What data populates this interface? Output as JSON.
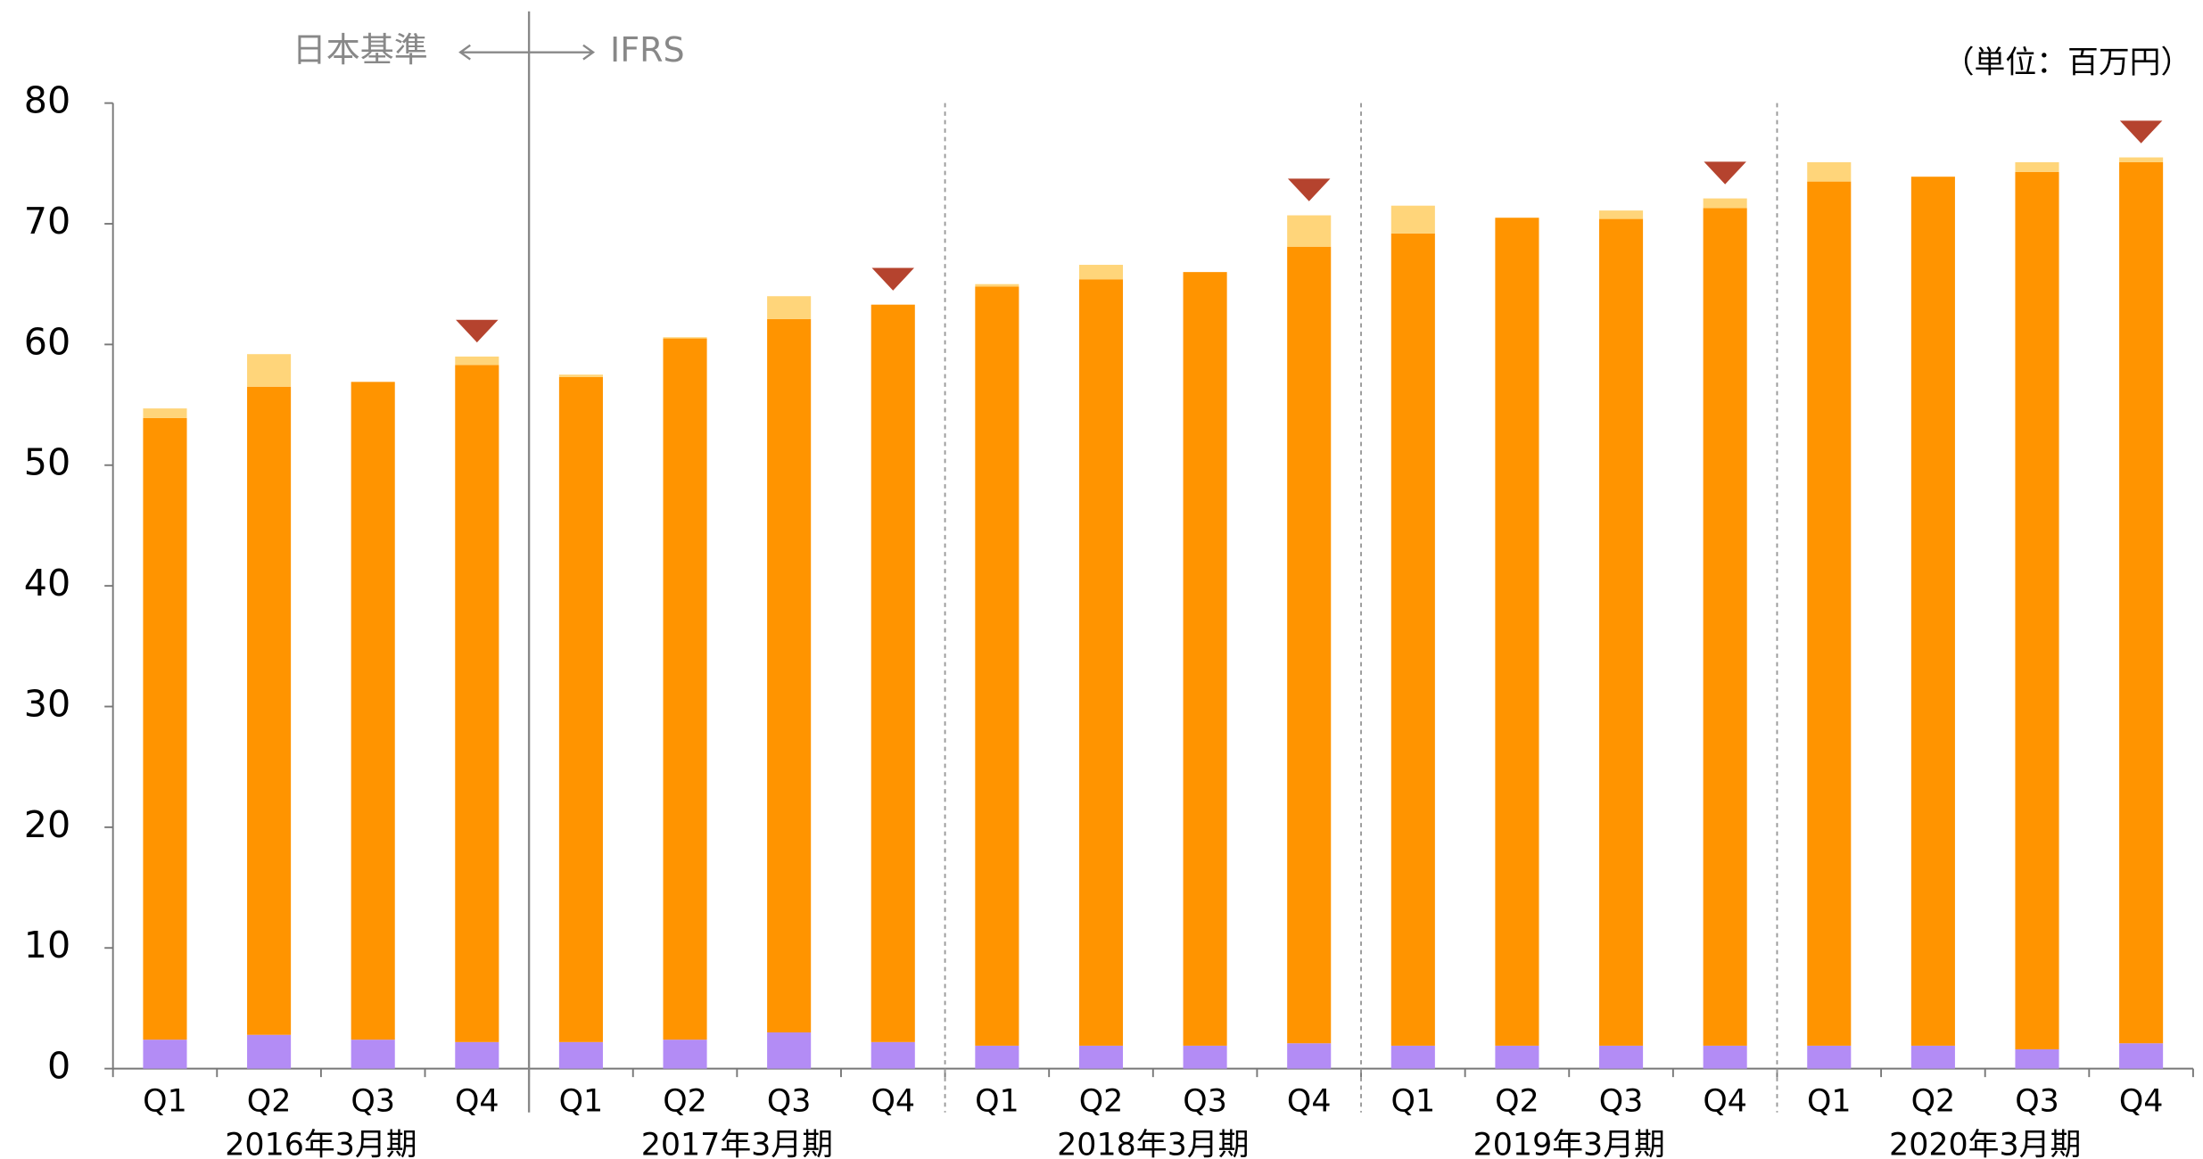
{
  "chart_data": {
    "type": "stacked_bar",
    "annotations": {
      "left_standard": "日本基準",
      "right_standard": "IFRS",
      "unit": "（単位：百万円）"
    },
    "categories": [
      "Q1",
      "Q2",
      "Q3",
      "Q4",
      "Q1",
      "Q2",
      "Q3",
      "Q4",
      "Q1",
      "Q2",
      "Q3",
      "Q4",
      "Q1",
      "Q2",
      "Q3",
      "Q4",
      "Q1",
      "Q2",
      "Q3",
      "Q4"
    ],
    "groups": [
      "2016年3月期",
      "2017年3月期",
      "2018年3月期",
      "2019年3月期",
      "2020年3月期"
    ],
    "series": [
      {
        "color": "#b38cf5",
        "values": [
          2.4,
          2.8,
          2.4,
          2.2,
          2.2,
          2.4,
          3.0,
          2.2,
          1.9,
          1.9,
          1.9,
          2.1,
          1.9,
          1.9,
          1.9,
          1.9,
          1.9,
          1.9,
          1.6,
          2.1
        ]
      },
      {
        "color": "#ff9400",
        "values": [
          51.5,
          53.7,
          54.5,
          56.1,
          55.1,
          58.1,
          59.1,
          61.1,
          62.9,
          63.5,
          64.1,
          66.0,
          67.3,
          68.6,
          68.5,
          69.4,
          71.6,
          72.0,
          72.7,
          73.0
        ]
      },
      {
        "color": "#ffd57a",
        "values": [
          0.8,
          2.7,
          0,
          0.7,
          0.2,
          0.1,
          1.9,
          0,
          0.2,
          1.2,
          0,
          2.6,
          2.3,
          0,
          0.7,
          0.8,
          1.6,
          0,
          0.8,
          0.4
        ]
      }
    ],
    "ylim": [
      0,
      80
    ],
    "yticks": [
      0,
      10,
      20,
      30,
      40,
      50,
      60,
      70,
      80
    ]
  }
}
